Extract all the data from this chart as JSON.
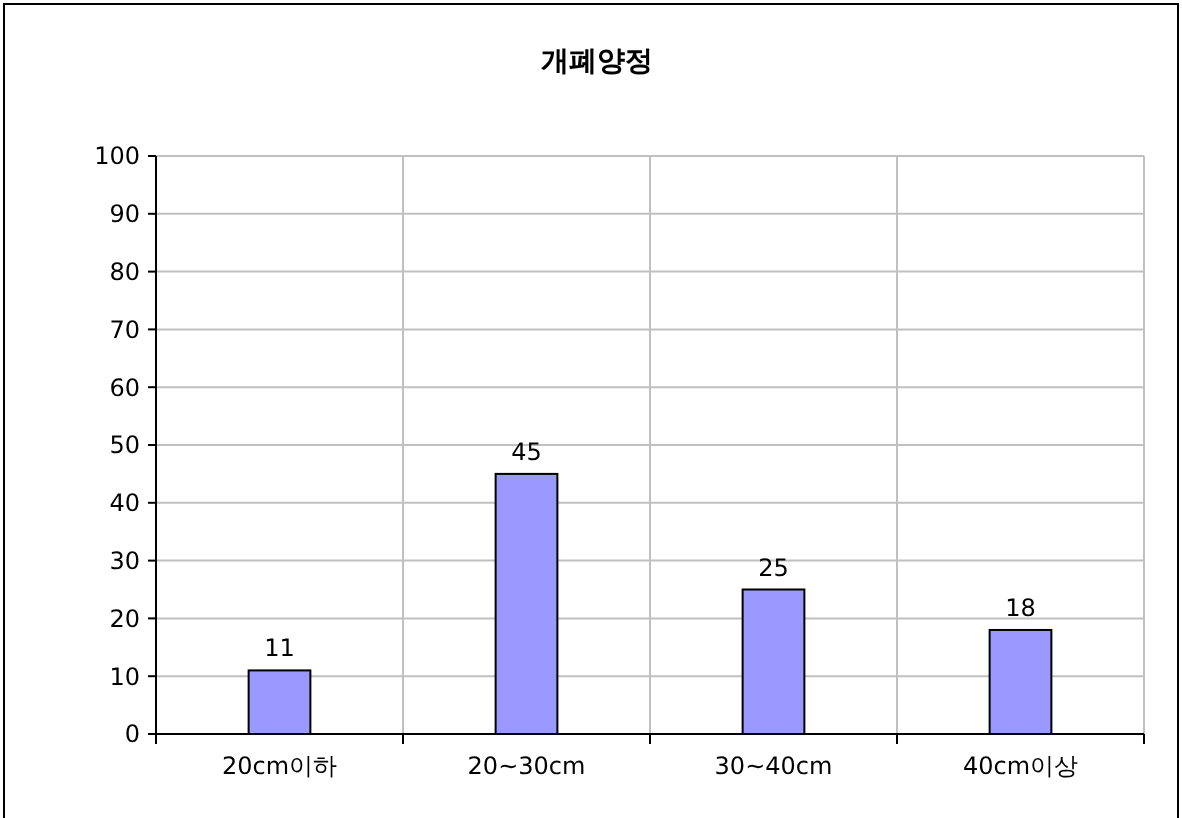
{
  "chart_data": {
    "type": "bar",
    "title": "개폐양정",
    "categories": [
      "20cm이하",
      "20~30cm",
      "30~40cm",
      "40cm이상"
    ],
    "values": [
      11,
      45,
      25,
      18
    ],
    "color": "#9999ff",
    "ylim": [
      0,
      100
    ],
    "yticks": [
      0,
      10,
      20,
      30,
      40,
      50,
      60,
      70,
      80,
      90,
      100
    ],
    "grid": true,
    "data_labels": true
  }
}
